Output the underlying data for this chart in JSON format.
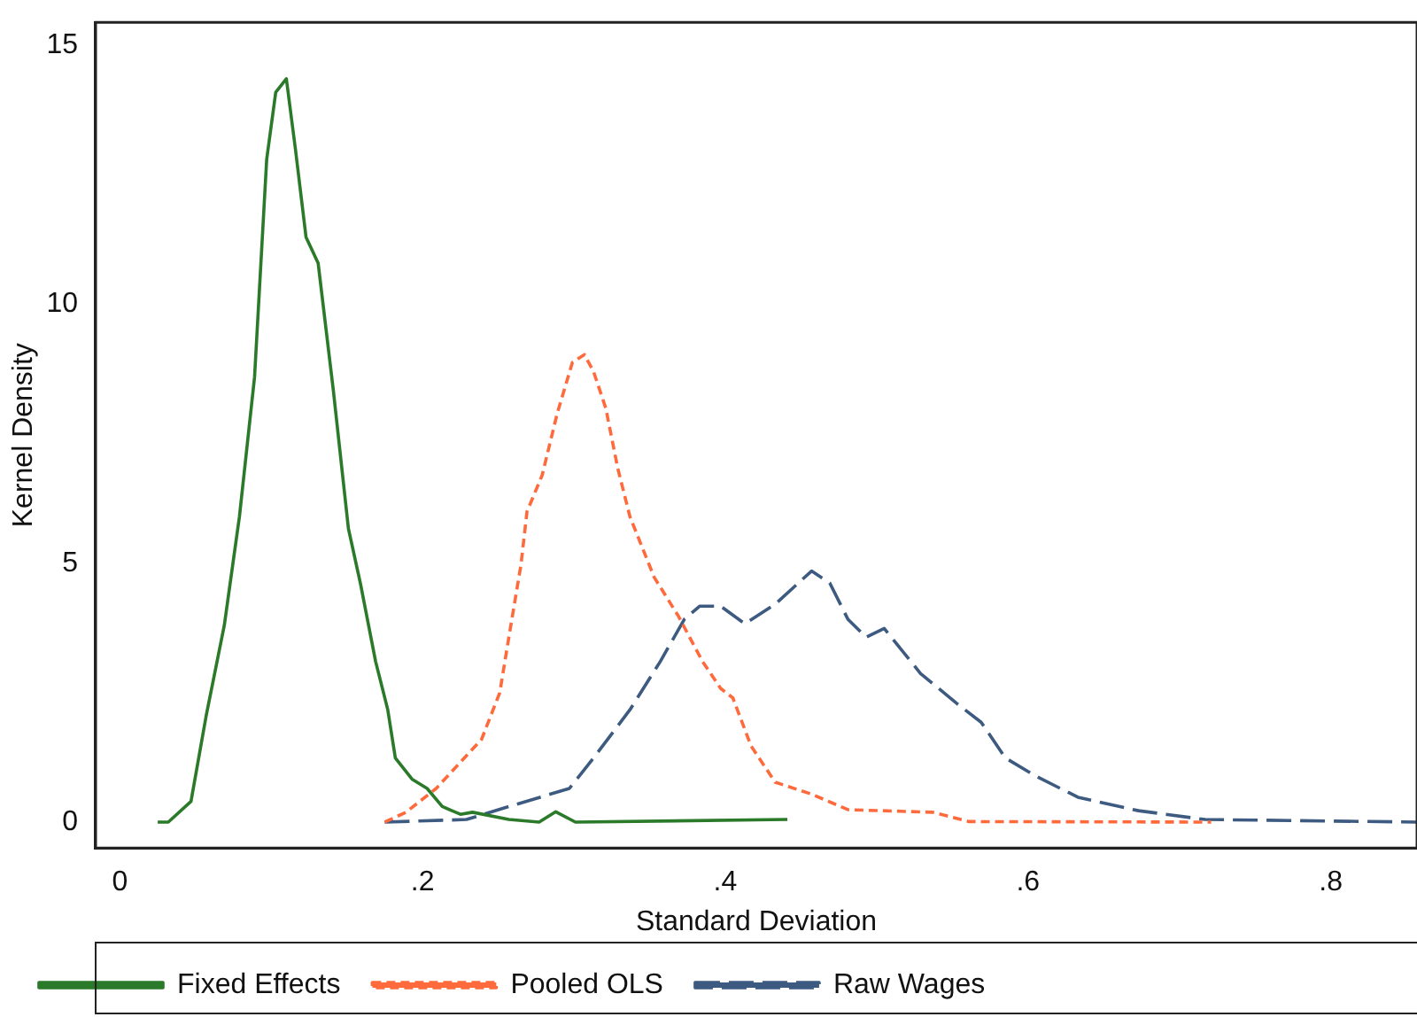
{
  "chart_data": {
    "type": "line",
    "xlabel": "Standard Deviation",
    "ylabel": "Kernel Density",
    "xlim": [
      -0.016,
      0.857
    ],
    "ylim": [
      -0.5,
      15.45
    ],
    "xticks": [
      0,
      {
        "value": 0.2,
        "label": ".2"
      },
      {
        "value": 0.4,
        "label": ".4"
      },
      {
        "value": 0.6,
        "label": ".6"
      },
      {
        "value": 0.8,
        "label": ".8"
      }
    ],
    "yticks": [
      0,
      5,
      10,
      15
    ],
    "grid": false,
    "legend": "bottom",
    "marker": "none",
    "series": [
      {
        "name": "Fixed Effects",
        "color": "#2a7a2a",
        "line_style": "solid",
        "x": [
          0.025,
          0.032,
          0.047,
          0.057,
          0.069,
          0.079,
          0.089,
          0.097,
          0.103,
          0.11,
          0.116,
          0.123,
          0.131,
          0.141,
          0.151,
          0.159,
          0.169,
          0.177,
          0.182,
          0.193,
          0.203,
          0.213,
          0.225,
          0.233,
          0.257,
          0.277,
          0.288,
          0.301,
          0.441
        ],
        "values": [
          0,
          0,
          0.4,
          2.05,
          3.8,
          5.9,
          8.6,
          12.8,
          14.1,
          14.36,
          13.0,
          11.3,
          10.8,
          8.35,
          5.67,
          4.6,
          3.1,
          2.17,
          1.24,
          0.83,
          0.65,
          0.3,
          0.15,
          0.19,
          0.05,
          0,
          0.2,
          0,
          0.05
        ]
      },
      {
        "name": "Pooled OLS",
        "color": "#ff6a3d",
        "line_style": "dashed",
        "x": [
          0.175,
          0.189,
          0.209,
          0.239,
          0.251,
          0.257,
          0.265,
          0.269,
          0.279,
          0.289,
          0.299,
          0.307,
          0.313,
          0.321,
          0.329,
          0.337,
          0.353,
          0.369,
          0.385,
          0.397,
          0.405,
          0.417,
          0.433,
          0.457,
          0.481,
          0.537,
          0.561,
          0.721
        ],
        "values": [
          0,
          0.19,
          0.65,
          1.6,
          2.5,
          3.57,
          4.97,
          6.0,
          6.7,
          7.9,
          8.88,
          9.03,
          8.7,
          8.0,
          6.83,
          5.9,
          4.73,
          3.98,
          3.1,
          2.58,
          2.4,
          1.47,
          0.77,
          0.54,
          0.24,
          0.19,
          0.01,
          0
        ]
      },
      {
        "name": "Raw Wages",
        "color": "#3d5a80",
        "line_style": "longdash",
        "x": [
          0.175,
          0.229,
          0.257,
          0.297,
          0.313,
          0.337,
          0.357,
          0.373,
          0.383,
          0.397,
          0.413,
          0.433,
          0.457,
          0.469,
          0.481,
          0.493,
          0.505,
          0.529,
          0.553,
          0.569,
          0.585,
          0.605,
          0.633,
          0.673,
          0.717,
          0.857
        ],
        "values": [
          0,
          0.05,
          0.3,
          0.65,
          1.24,
          2.17,
          3.1,
          3.92,
          4.17,
          4.17,
          3.83,
          4.21,
          4.85,
          4.62,
          3.92,
          3.57,
          3.74,
          2.87,
          2.29,
          1.93,
          1.24,
          0.89,
          0.48,
          0.22,
          0.05,
          0
        ]
      }
    ]
  }
}
